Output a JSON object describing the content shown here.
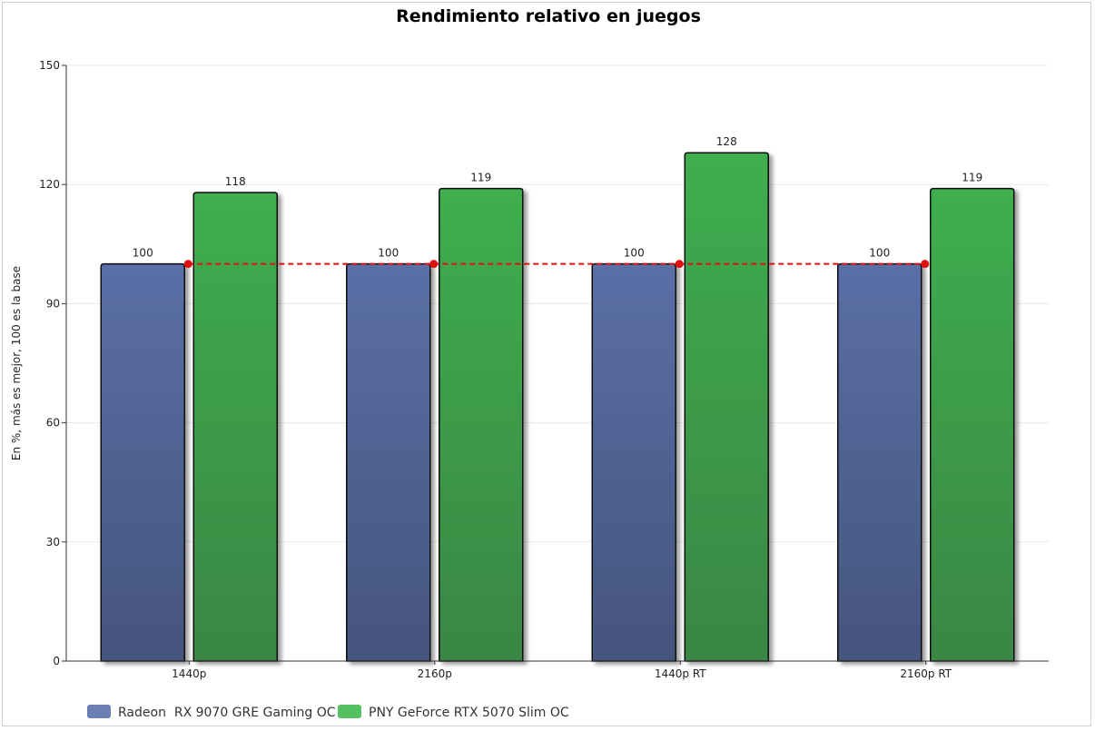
{
  "chart_data": {
    "type": "bar",
    "title": "Rendimiento relativo en juegos",
    "xlabel": "",
    "ylabel": "En %, más es mejor, 100 es la base",
    "categories": [
      "1440p",
      "2160p",
      "1440p RT",
      "2160p RT"
    ],
    "series": [
      {
        "name": "Radeon  RX 9070 GRE Gaming OC",
        "color": "#5068a0",
        "values": [
          100,
          100,
          100,
          100
        ]
      },
      {
        "name": "PNY GeForce RTX 5070 Slim OC",
        "color": "#3fa94d",
        "values": [
          118,
          119,
          128,
          119
        ]
      }
    ],
    "ylim": [
      0,
      150
    ],
    "yticks": [
      0,
      30,
      60,
      90,
      120,
      150
    ],
    "baseline": {
      "value": 100,
      "color": "#e01010",
      "style": "dashed"
    },
    "grid": true,
    "legend_position": "bottom-left",
    "data_labels": true
  }
}
